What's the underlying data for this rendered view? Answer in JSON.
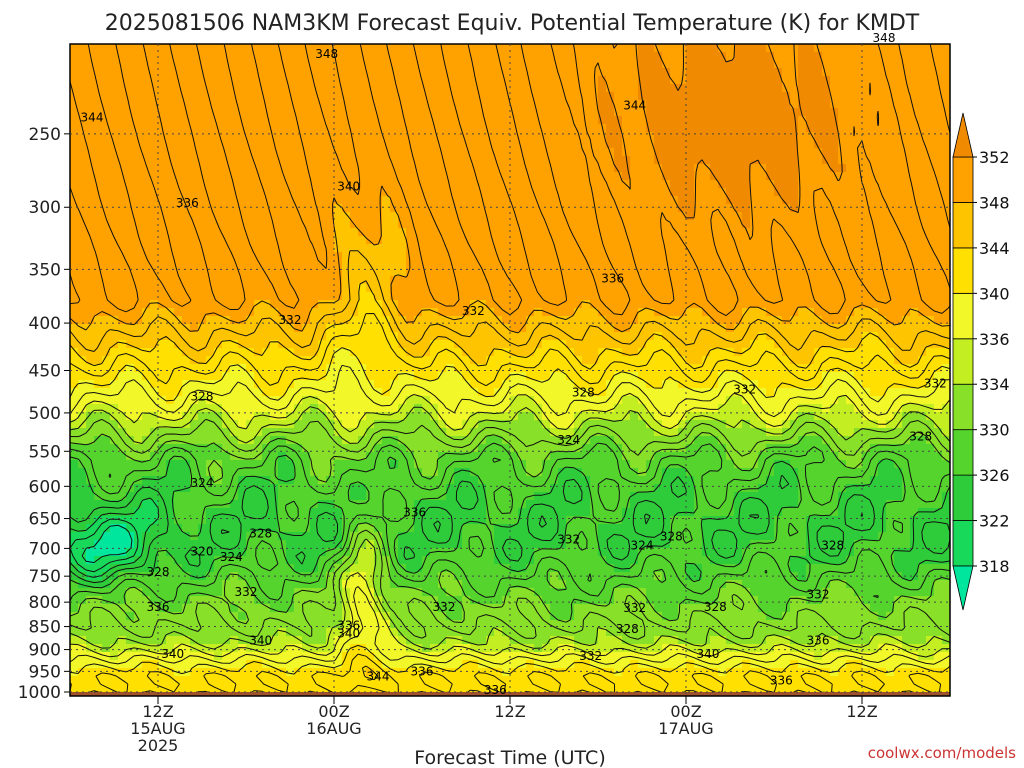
{
  "title": "2025081506 NAM3KM Forecast Equiv. Potential Temperature (K) for KMDT",
  "xlabel": "Forecast Time (UTC)",
  "credit": "coolwx.com/models",
  "chart_data": {
    "type": "heatmap",
    "title": "2025081506 NAM3KM Forecast Equiv. Potential Temperature (K) for KMDT",
    "xlabel": "Forecast Time (UTC)",
    "ylabel": "",
    "x_ticks": [
      {
        "lines": [
          "12Z",
          "15AUG",
          "2025"
        ],
        "hours": 6
      },
      {
        "lines": [
          "00Z",
          "16AUG"
        ],
        "hours": 18
      },
      {
        "lines": [
          "12Z"
        ],
        "hours": 30
      },
      {
        "lines": [
          "00Z",
          "17AUG"
        ],
        "hours": 42
      },
      {
        "lines": [
          "12Z"
        ],
        "hours": 54
      }
    ],
    "xlim_hours": [
      0,
      60
    ],
    "y_ticks": [
      250,
      300,
      350,
      400,
      450,
      500,
      550,
      600,
      650,
      700,
      750,
      800,
      850,
      900,
      950,
      1000
    ],
    "ylim": [
      1010,
      200
    ],
    "y_scale": "log",
    "grid": true,
    "colorbar": {
      "levels": [
        318,
        322,
        326,
        330,
        334,
        336,
        340,
        344,
        348,
        352
      ],
      "colors": [
        "#00e69c",
        "#19d95a",
        "#2ecc3a",
        "#55d42e",
        "#88e028",
        "#c2ee22",
        "#f2f72a",
        "#ffe000",
        "#ffc400",
        "#ffa200",
        "#f08a00"
      ],
      "extend": "both"
    },
    "contour_labels": [
      {
        "v": 348,
        "t": 17.5,
        "p": 205
      },
      {
        "v": 348,
        "t": 55.5,
        "p": 197
      },
      {
        "v": 344,
        "t": 1.5,
        "p": 240
      },
      {
        "v": 344,
        "t": 38.5,
        "p": 233
      },
      {
        "v": 340,
        "t": 19,
        "p": 285
      },
      {
        "v": 336,
        "t": 8,
        "p": 297
      },
      {
        "v": 336,
        "t": 37,
        "p": 358
      },
      {
        "v": 332,
        "t": 15,
        "p": 397
      },
      {
        "v": 332,
        "t": 27.5,
        "p": 388
      },
      {
        "v": 332,
        "t": 46,
        "p": 472
      },
      {
        "v": 332,
        "t": 59,
        "p": 465
      },
      {
        "v": 328,
        "t": 9,
        "p": 480
      },
      {
        "v": 328,
        "t": 35,
        "p": 475
      },
      {
        "v": 328,
        "t": 58,
        "p": 530
      },
      {
        "v": 324,
        "t": 34,
        "p": 535
      },
      {
        "v": 324,
        "t": 9,
        "p": 595
      },
      {
        "v": 328,
        "t": 13,
        "p": 675
      },
      {
        "v": 320,
        "t": 9,
        "p": 705
      },
      {
        "v": 324,
        "t": 11,
        "p": 715
      },
      {
        "v": 328,
        "t": 6,
        "p": 742
      },
      {
        "v": 336,
        "t": 23.5,
        "p": 640
      },
      {
        "v": 332,
        "t": 34,
        "p": 685
      },
      {
        "v": 324,
        "t": 39,
        "p": 695
      },
      {
        "v": 328,
        "t": 41,
        "p": 680
      },
      {
        "v": 328,
        "t": 52,
        "p": 695
      },
      {
        "v": 332,
        "t": 12,
        "p": 780
      },
      {
        "v": 336,
        "t": 6,
        "p": 810
      },
      {
        "v": 332,
        "t": 25.5,
        "p": 810
      },
      {
        "v": 332,
        "t": 38.5,
        "p": 812
      },
      {
        "v": 328,
        "t": 44,
        "p": 810
      },
      {
        "v": 332,
        "t": 51,
        "p": 785
      },
      {
        "v": 328,
        "t": 38,
        "p": 855
      },
      {
        "v": 336,
        "t": 19,
        "p": 848
      },
      {
        "v": 340,
        "t": 19,
        "p": 865
      },
      {
        "v": 340,
        "t": 13,
        "p": 880
      },
      {
        "v": 340,
        "t": 7,
        "p": 910
      },
      {
        "v": 332,
        "t": 35.5,
        "p": 915
      },
      {
        "v": 340,
        "t": 43.5,
        "p": 910
      },
      {
        "v": 336,
        "t": 51,
        "p": 880
      },
      {
        "v": 344,
        "t": 21,
        "p": 962
      },
      {
        "v": 336,
        "t": 24,
        "p": 950
      },
      {
        "v": 336,
        "t": 29,
        "p": 995
      },
      {
        "v": 336,
        "t": 48.5,
        "p": 972
      }
    ]
  }
}
